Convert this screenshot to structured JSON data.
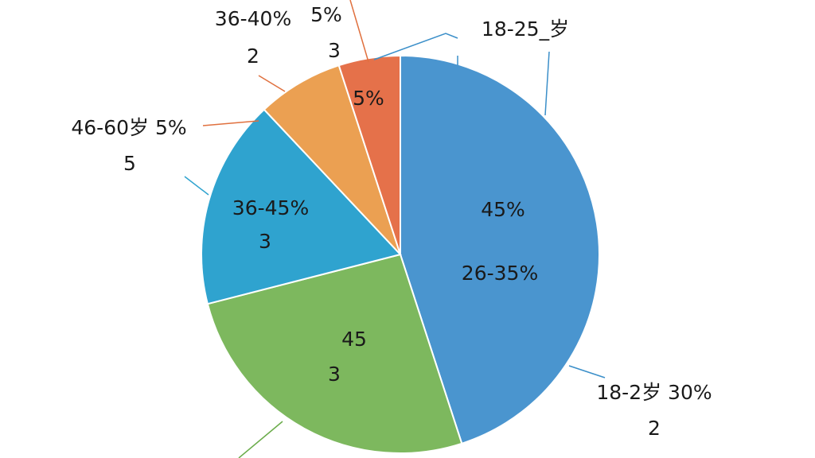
{
  "chart_data": {
    "type": "pie",
    "values": [
      45,
      26,
      17,
      7,
      5
    ],
    "colors": [
      "#4a95cf",
      "#7db85e",
      "#2fa3cf",
      "#eba052",
      "#e5714a"
    ],
    "annotations": [
      "45%",
      "26-35%",
      "45",
      "3",
      "36-45%",
      "3",
      "5%",
      "36-40%",
      "2",
      "5%",
      "3",
      "18-25_岁",
      "46-60岁  5%",
      "5",
      "18-2岁 30%",
      "2"
    ]
  }
}
